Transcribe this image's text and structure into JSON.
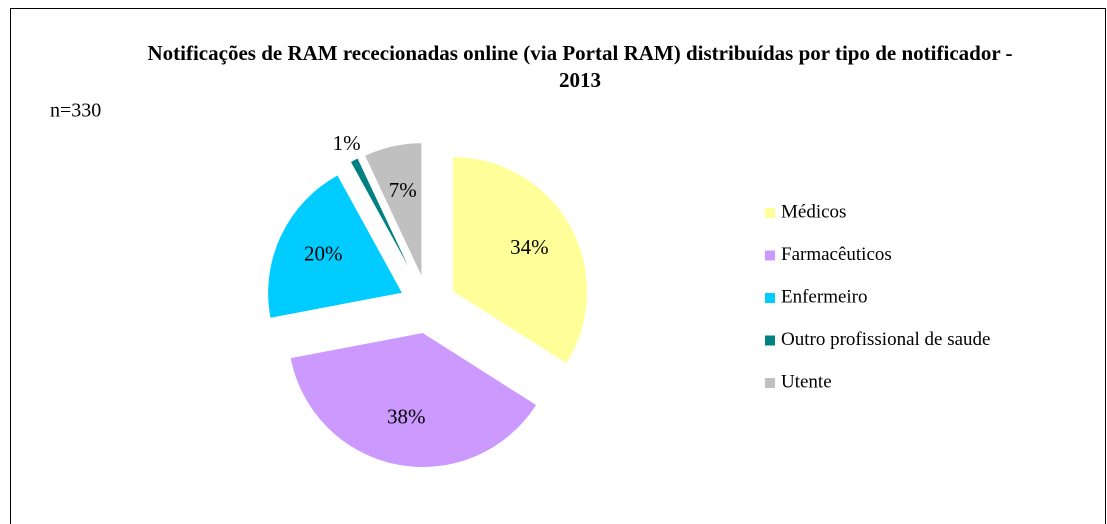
{
  "chart_data": {
    "type": "pie",
    "title": "Notificações  de RAM rececionadas online (via Portal RAM)  distribuídas por tipo de notificador  - 2013",
    "annotation": "n=330",
    "categories": [
      "Médicos",
      "Farmacêuticos",
      "Enfermeiro",
      "Outro profissional de saude",
      "Utente"
    ],
    "values": [
      34,
      38,
      20,
      1,
      7
    ],
    "value_labels": [
      "34%",
      "38%",
      "20%",
      "1%",
      "7%"
    ],
    "colors": [
      "#FFFF99",
      "#CC99FF",
      "#00CCFF",
      "#008080",
      "#C0C0C0"
    ],
    "legend": "right"
  }
}
